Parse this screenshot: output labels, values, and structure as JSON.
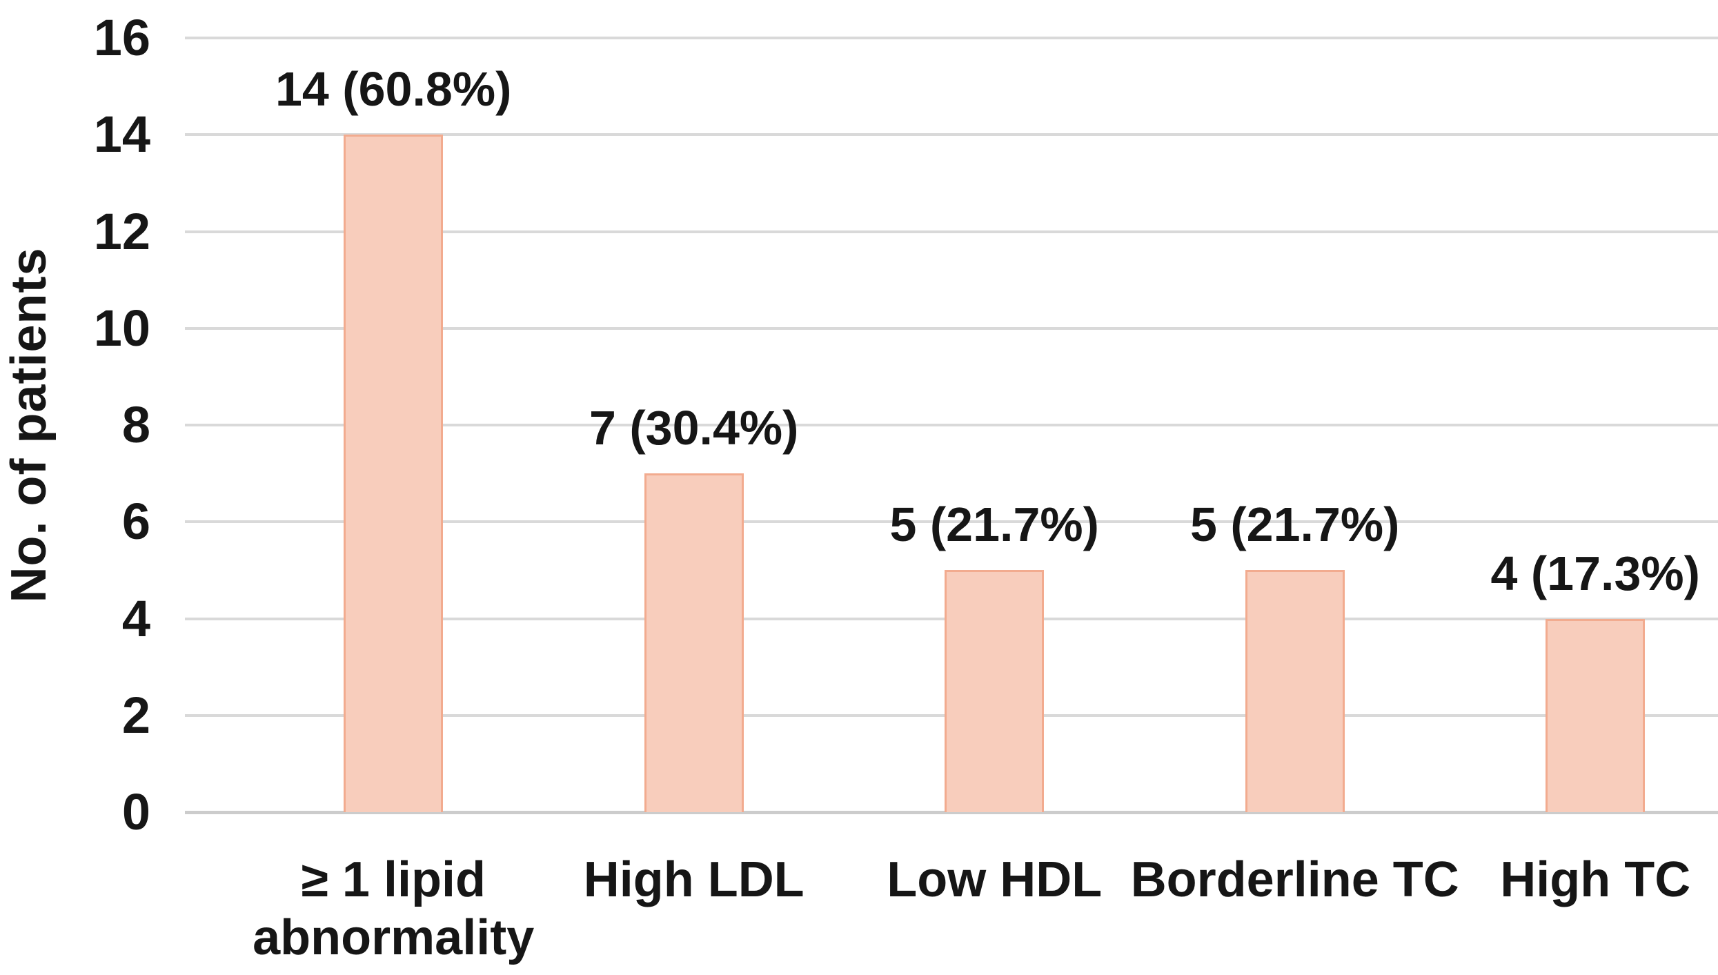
{
  "chart_data": {
    "type": "bar",
    "title": "",
    "categories": [
      "≥ 1 lipid abnormality",
      "High LDL",
      "Low HDL",
      "Borderline TC",
      "High TC"
    ],
    "values": [
      14,
      7,
      5,
      5,
      4
    ],
    "data_labels": [
      "14 (60.8%)",
      "7 (30.4%)",
      "5 (21.7%)",
      "5 (21.7%)",
      "4 (17.3%)"
    ],
    "xlabel": "",
    "ylabel": "No. of patients",
    "ylim": [
      0,
      16
    ],
    "yticks": [
      0,
      2,
      4,
      6,
      8,
      10,
      12,
      14,
      16
    ],
    "grid": "horizontal",
    "legend": "none",
    "colors": {
      "bar_fill": "#F8CDBC",
      "bar_border": "#F2AB8F",
      "gridline": "#D9D9D9",
      "axis_line": "#CCCCCC",
      "text": "#161616",
      "background": "#FFFFFF"
    }
  }
}
